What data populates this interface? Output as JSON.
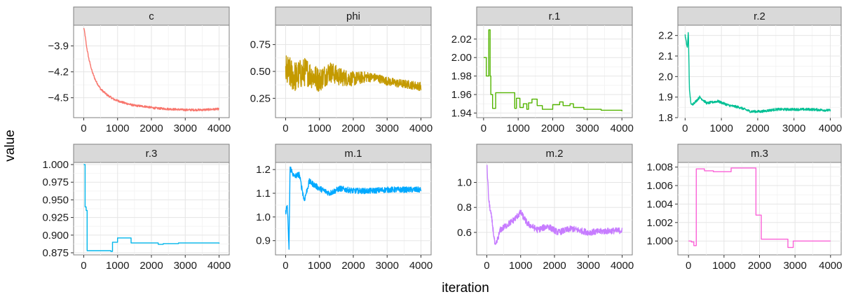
{
  "chart_data": {
    "type": "line",
    "xlabel": "iteration",
    "ylabel": "value",
    "grid": true,
    "legend": "none",
    "facets": [
      {
        "name": "c",
        "color": "#F8766D",
        "xlim": [
          -300,
          4300
        ],
        "ylim": [
          -4.73,
          -3.66
        ],
        "xticks": [
          0,
          1000,
          2000,
          3000,
          4000
        ],
        "xtick_labels": [
          "0",
          "1000",
          "2000",
          "3000",
          "4000"
        ],
        "yticks": [
          -3.9,
          -4.2,
          -4.5
        ],
        "ytick_labels": [
          "−3.9",
          "−4.2",
          "−4.5"
        ],
        "points": [
          [
            0,
            -3.68
          ],
          [
            40,
            -3.78
          ],
          [
            80,
            -3.9
          ],
          [
            150,
            -4.05
          ],
          [
            250,
            -4.2
          ],
          [
            350,
            -4.3
          ],
          [
            500,
            -4.4
          ],
          [
            700,
            -4.47
          ],
          [
            900,
            -4.52
          ],
          [
            1200,
            -4.56
          ],
          [
            1500,
            -4.59
          ],
          [
            1800,
            -4.6
          ],
          [
            2100,
            -4.62
          ],
          [
            2500,
            -4.63
          ],
          [
            3000,
            -4.64
          ],
          [
            3500,
            -4.64
          ],
          [
            4000,
            -4.63
          ]
        ],
        "noise": 0.012
      },
      {
        "name": "phi",
        "color": "#C49A00",
        "xlim": [
          -300,
          4300
        ],
        "ylim": [
          0.07,
          0.93
        ],
        "xticks": [
          0,
          1000,
          2000,
          3000,
          4000
        ],
        "xtick_labels": [
          "0",
          "1000",
          "2000",
          "3000",
          "4000"
        ],
        "yticks": [
          0.75,
          0.5,
          0.25
        ],
        "ytick_labels": [
          "0.75",
          "0.50",
          "0.25"
        ],
        "points": [
          [
            0,
            0.5
          ],
          [
            300,
            0.45
          ],
          [
            600,
            0.5
          ],
          [
            1000,
            0.42
          ],
          [
            1300,
            0.5
          ],
          [
            1600,
            0.45
          ],
          [
            2000,
            0.43
          ],
          [
            2400,
            0.45
          ],
          [
            2700,
            0.44
          ],
          [
            3000,
            0.41
          ],
          [
            3300,
            0.39
          ],
          [
            3600,
            0.38
          ],
          [
            4000,
            0.36
          ]
        ],
        "noise": 0.16,
        "noise_decay": true
      },
      {
        "name": "r.1",
        "color": "#53B400",
        "xlim": [
          -200,
          4300
        ],
        "ylim": [
          1.935,
          2.035
        ],
        "xticks": [
          0,
          1000,
          2000,
          3000,
          4000
        ],
        "xtick_labels": [
          "0",
          "1000",
          "2000",
          "3000",
          "4000"
        ],
        "yticks": [
          2.02,
          2.0,
          1.98,
          1.96,
          1.94
        ],
        "ytick_labels": [
          "2.02",
          "2.00",
          "1.98",
          "1.96",
          "1.94"
        ],
        "step": true,
        "points": [
          [
            0,
            2.0
          ],
          [
            80,
            1.98
          ],
          [
            150,
            2.03
          ],
          [
            190,
            1.98
          ],
          [
            210,
            1.96
          ],
          [
            260,
            1.945
          ],
          [
            350,
            1.962
          ],
          [
            900,
            1.945
          ],
          [
            950,
            1.956
          ],
          [
            1050,
            1.946
          ],
          [
            1150,
            1.95
          ],
          [
            1250,
            1.944
          ],
          [
            1300,
            1.951
          ],
          [
            1400,
            1.955
          ],
          [
            1550,
            1.948
          ],
          [
            1700,
            1.944
          ],
          [
            2000,
            1.949
          ],
          [
            2200,
            1.952
          ],
          [
            2300,
            1.948
          ],
          [
            2500,
            1.95
          ],
          [
            2600,
            1.946
          ],
          [
            2900,
            1.944
          ],
          [
            3400,
            1.943
          ],
          [
            4000,
            1.942
          ]
        ]
      },
      {
        "name": "r.2",
        "color": "#00C094",
        "xlim": [
          -200,
          4300
        ],
        "ylim": [
          1.8,
          2.25
        ],
        "xticks": [
          0,
          1000,
          2000,
          3000,
          4000
        ],
        "xtick_labels": [
          "0",
          "1000",
          "2000",
          "3000",
          "4000"
        ],
        "yticks": [
          2.2,
          2.1,
          2.0,
          1.9,
          1.8
        ],
        "ytick_labels": [
          "2.2",
          "2.1",
          "2.0",
          "1.9",
          "1.8"
        ],
        "points": [
          [
            0,
            2.2
          ],
          [
            60,
            2.14
          ],
          [
            90,
            2.22
          ],
          [
            120,
            1.93
          ],
          [
            170,
            1.86
          ],
          [
            300,
            1.88
          ],
          [
            400,
            1.9
          ],
          [
            600,
            1.87
          ],
          [
            900,
            1.88
          ],
          [
            1200,
            1.86
          ],
          [
            1500,
            1.85
          ],
          [
            1800,
            1.83
          ],
          [
            2100,
            1.83
          ],
          [
            2500,
            1.84
          ],
          [
            3000,
            1.84
          ],
          [
            3500,
            1.84
          ],
          [
            4000,
            1.835
          ]
        ],
        "noise": 0.006
      },
      {
        "name": "r.3",
        "color": "#00B6EB",
        "xlim": [
          -300,
          4300
        ],
        "ylim": [
          0.872,
          1.003
        ],
        "xticks": [
          0,
          1000,
          2000,
          3000,
          4000
        ],
        "xtick_labels": [
          "0",
          "1000",
          "2000",
          "3000",
          "4000"
        ],
        "yticks": [
          1.0,
          0.975,
          0.95,
          0.925,
          0.9,
          0.875
        ],
        "ytick_labels": [
          "1.000",
          "0.975",
          "0.950",
          "0.925",
          "0.900",
          "0.875"
        ],
        "step": true,
        "points": [
          [
            0,
            1.0
          ],
          [
            40,
            0.94
          ],
          [
            70,
            0.935
          ],
          [
            100,
            0.878
          ],
          [
            800,
            0.877
          ],
          [
            850,
            0.89
          ],
          [
            1000,
            0.896
          ],
          [
            1400,
            0.889
          ],
          [
            2200,
            0.887
          ],
          [
            2350,
            0.888
          ],
          [
            2800,
            0.889
          ],
          [
            4000,
            0.888
          ]
        ]
      },
      {
        "name": "m.1",
        "color": "#A58AFF",
        "xlim": [
          -300,
          4300
        ],
        "ylim": [
          0.84,
          1.23
        ],
        "xticks": [
          0,
          1000,
          2000,
          3000,
          4000
        ],
        "xtick_labels": [
          "0",
          "1000",
          "2000",
          "3000",
          "4000"
        ],
        "yticks": [
          1.2,
          1.1,
          1.0,
          0.9
        ],
        "ytick_labels": [
          "1.2",
          "1.1",
          "1.0",
          "0.9"
        ],
        "points": [
          [
            0,
            1.02
          ],
          [
            50,
            1.05
          ],
          [
            100,
            0.86
          ],
          [
            130,
            1.21
          ],
          [
            250,
            1.17
          ],
          [
            400,
            1.18
          ],
          [
            550,
            1.07
          ],
          [
            700,
            1.15
          ],
          [
            1000,
            1.12
          ],
          [
            1300,
            1.1
          ],
          [
            1600,
            1.12
          ],
          [
            2000,
            1.11
          ],
          [
            2500,
            1.11
          ],
          [
            3000,
            1.115
          ],
          [
            3500,
            1.115
          ],
          [
            4000,
            1.115
          ]
        ],
        "noise": 0.012,
        "color_override": "#00A9FF"
      },
      {
        "name": "m.2",
        "color": "#C77CFF",
        "xlim": [
          -300,
          4300
        ],
        "ylim": [
          0.42,
          1.16
        ],
        "xticks": [
          0,
          1000,
          2000,
          3000,
          4000
        ],
        "xtick_labels": [
          "0",
          "1000",
          "2000",
          "3000",
          "4000"
        ],
        "yticks": [
          1.0,
          0.8,
          0.6
        ],
        "ytick_labels": [
          "1.0",
          "0.8",
          "0.6"
        ],
        "points": [
          [
            0,
            1.15
          ],
          [
            60,
            0.85
          ],
          [
            150,
            0.7
          ],
          [
            250,
            0.48
          ],
          [
            400,
            0.62
          ],
          [
            600,
            0.66
          ],
          [
            800,
            0.7
          ],
          [
            1000,
            0.76
          ],
          [
            1200,
            0.67
          ],
          [
            1500,
            0.62
          ],
          [
            1800,
            0.65
          ],
          [
            2100,
            0.6
          ],
          [
            2500,
            0.63
          ],
          [
            3000,
            0.6
          ],
          [
            3500,
            0.61
          ],
          [
            4000,
            0.615
          ]
        ],
        "noise": 0.025
      },
      {
        "name": "m.3",
        "color": "#FB61D7",
        "xlim": [
          -300,
          4300
        ],
        "ylim": [
          0.9985,
          1.0085
        ],
        "xticks": [
          0,
          1000,
          2000,
          3000,
          4000
        ],
        "xtick_labels": [
          "0",
          "1000",
          "2000",
          "3000",
          "4000"
        ],
        "yticks": [
          1.008,
          1.006,
          1.004,
          1.002,
          1.0
        ],
        "ytick_labels": [
          "1.008",
          "1.006",
          "1.004",
          "1.002",
          "1.000"
        ],
        "step": true,
        "points": [
          [
            0,
            1.0
          ],
          [
            80,
            0.9999
          ],
          [
            150,
            0.9995
          ],
          [
            220,
            1.0078
          ],
          [
            450,
            1.0076
          ],
          [
            700,
            1.0075
          ],
          [
            1200,
            1.0079
          ],
          [
            1900,
            1.0028
          ],
          [
            2050,
            1.0002
          ],
          [
            2800,
            0.9993
          ],
          [
            2950,
            1.0
          ],
          [
            4000,
            1.0
          ]
        ]
      }
    ]
  }
}
